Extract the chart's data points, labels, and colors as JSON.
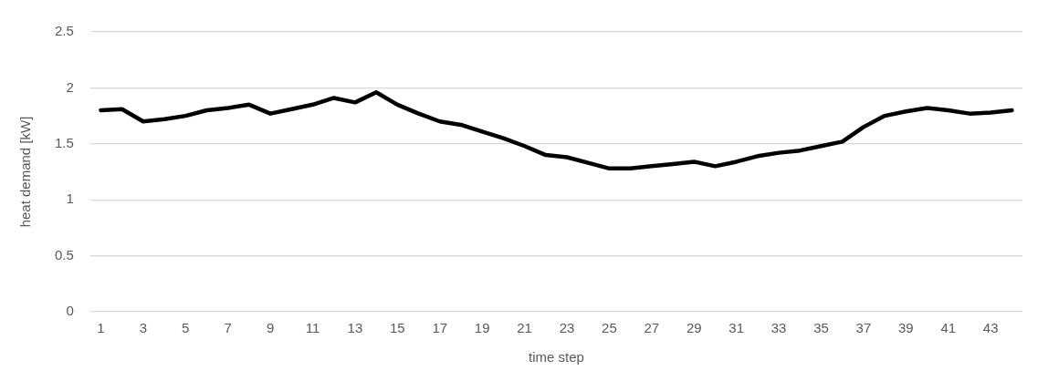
{
  "chart_data": {
    "type": "line",
    "xlabel": "time step",
    "ylabel": "heat demand [kW]",
    "x": [
      1,
      2,
      3,
      4,
      5,
      6,
      7,
      8,
      9,
      10,
      11,
      12,
      13,
      14,
      15,
      16,
      17,
      18,
      19,
      20,
      21,
      22,
      23,
      24,
      25,
      26,
      27,
      28,
      29,
      30,
      31,
      32,
      33,
      34,
      35,
      36,
      37,
      38,
      39,
      40,
      41,
      42,
      43,
      44
    ],
    "series": [
      {
        "color": "#000000",
        "values": [
          1.8,
          1.81,
          1.7,
          1.72,
          1.75,
          1.8,
          1.82,
          1.85,
          1.77,
          1.81,
          1.85,
          1.91,
          1.87,
          1.96,
          1.85,
          1.77,
          1.7,
          1.67,
          1.61,
          1.55,
          1.48,
          1.4,
          1.38,
          1.33,
          1.28,
          1.28,
          1.3,
          1.32,
          1.34,
          1.3,
          1.34,
          1.39,
          1.42,
          1.44,
          1.48,
          1.52,
          1.65,
          1.75,
          1.79,
          1.82,
          1.8,
          1.77,
          1.78,
          1.8
        ]
      }
    ],
    "xlim": [
      0.5,
      44.5
    ],
    "xticks": [
      1,
      3,
      5,
      7,
      9,
      11,
      13,
      15,
      17,
      19,
      21,
      23,
      25,
      27,
      29,
      31,
      33,
      35,
      37,
      39,
      41,
      43
    ],
    "ylim": [
      0,
      2.5
    ],
    "yticks": [
      0,
      0.5,
      1,
      1.5,
      2,
      2.5
    ],
    "grid": "y",
    "legend": false,
    "marker": "none",
    "line_style": "solid"
  }
}
